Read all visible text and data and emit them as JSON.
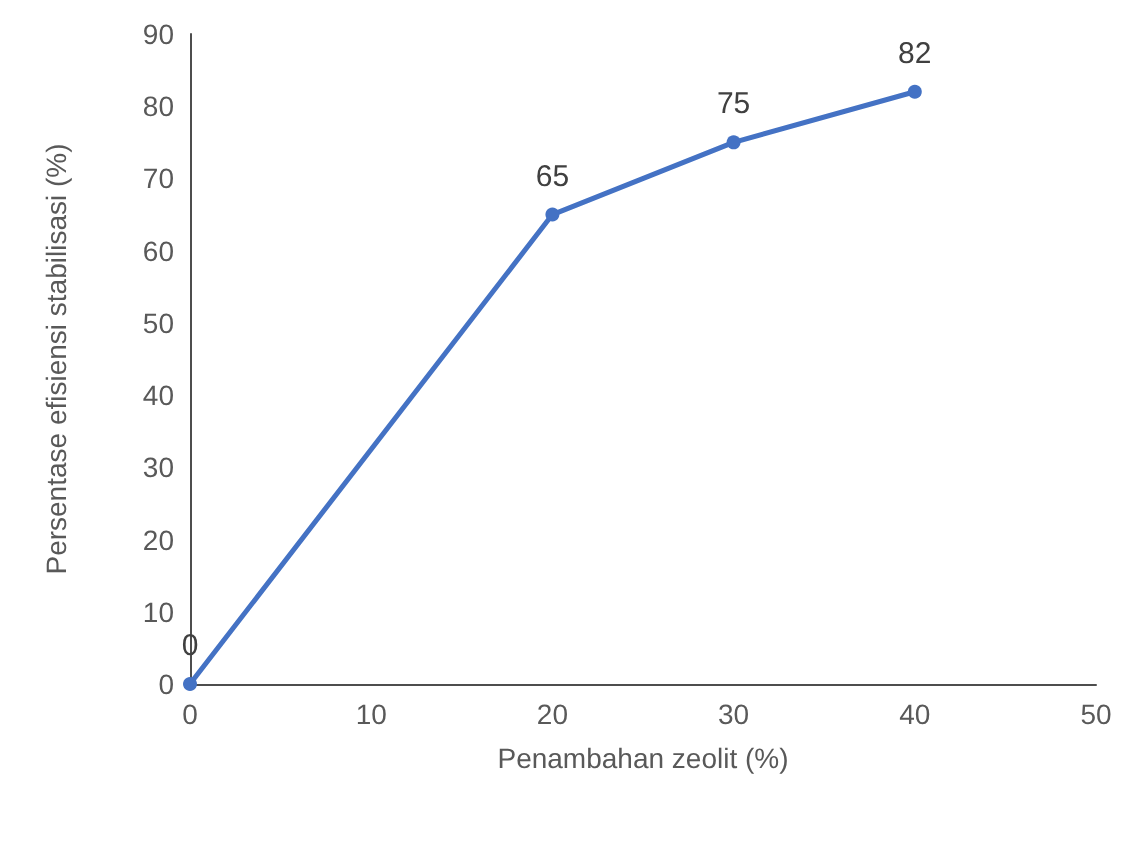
{
  "chart_data": {
    "type": "line",
    "xlabel": "Penambahan zeolit (%)",
    "ylabel": "Persentase efisiensi stabilisasi (%)",
    "x": [
      0,
      20,
      30,
      40
    ],
    "series": [
      {
        "color": "#4472c4",
        "values": [
          0,
          65,
          75,
          82
        ]
      }
    ],
    "xlim": [
      0,
      50
    ],
    "xticks": [
      0,
      10,
      20,
      30,
      40,
      50
    ],
    "ylim": [
      0,
      90
    ],
    "yticks": [
      0,
      10,
      20,
      30,
      40,
      50,
      60,
      70,
      80,
      90
    ],
    "grid": false,
    "marker": "circle",
    "line_style": "solid",
    "data_labels": true
  }
}
